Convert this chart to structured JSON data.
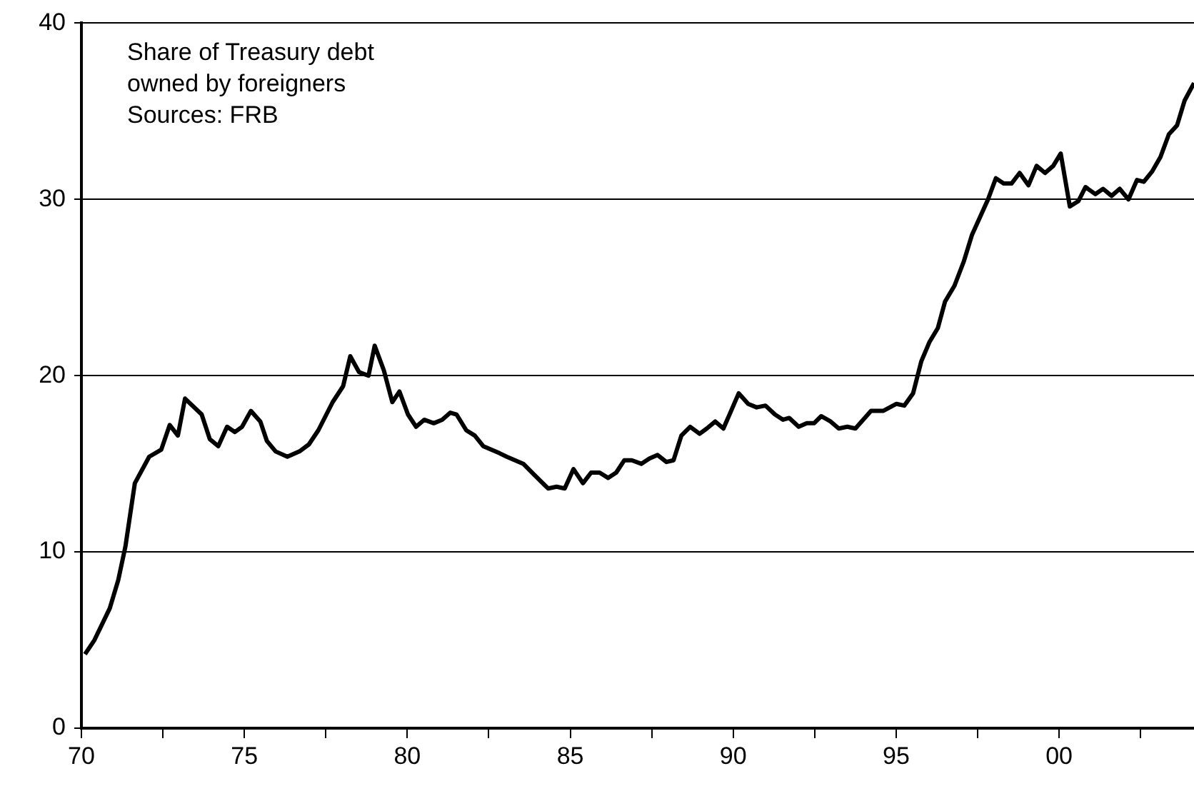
{
  "chart_data": {
    "type": "line",
    "title": "Share of Treasury debt owned by foreigners",
    "annotations": [
      "Sources: FRB"
    ],
    "x": [
      1970.11,
      1970.4,
      1970.87,
      1971.13,
      1971.35,
      1971.64,
      1972.08,
      1972.45,
      1972.71,
      1972.96,
      1973.18,
      1973.69,
      1973.94,
      1974.2,
      1974.47,
      1974.71,
      1974.93,
      1975.2,
      1975.49,
      1975.69,
      1975.96,
      1976.32,
      1976.69,
      1976.98,
      1977.27,
      1977.71,
      1978.03,
      1978.25,
      1978.52,
      1978.81,
      1979.0,
      1979.28,
      1979.54,
      1979.76,
      1980.02,
      1980.27,
      1980.52,
      1980.81,
      1981.07,
      1981.32,
      1981.51,
      1981.81,
      1982.07,
      1982.33,
      1982.83,
      1983.05,
      1983.56,
      1983.88,
      1984.32,
      1984.58,
      1984.83,
      1985.1,
      1985.39,
      1985.64,
      1985.9,
      1986.16,
      1986.41,
      1986.66,
      1986.89,
      1987.18,
      1987.43,
      1987.68,
      1987.95,
      1988.17,
      1988.41,
      1988.68,
      1988.97,
      1989.19,
      1989.45,
      1989.7,
      1990.17,
      1990.46,
      1990.72,
      1990.99,
      1991.28,
      1991.53,
      1991.72,
      1992.01,
      1992.26,
      1992.48,
      1992.7,
      1992.99,
      1993.24,
      1993.5,
      1993.75,
      1994.23,
      1994.6,
      1995.01,
      1995.25,
      1995.52,
      1995.77,
      1996.02,
      1996.28,
      1996.5,
      1996.79,
      1997.08,
      1997.33,
      1997.6,
      1997.82,
      1998.06,
      1998.3,
      1998.54,
      1998.79,
      1999.06,
      1999.31,
      1999.57,
      1999.82,
      2000.05,
      2000.33,
      2000.59,
      2000.81,
      2001.11,
      2001.35,
      2001.61,
      2001.86,
      2002.13,
      2002.39,
      2002.6,
      2002.86,
      2003.11,
      2003.37,
      2003.62,
      2003.85,
      2004.14
    ],
    "series": [
      {
        "color": "#000000",
        "values": [
          4.2,
          5.0,
          6.8,
          8.4,
          10.3,
          13.9,
          15.4,
          15.8,
          17.2,
          16.6,
          18.7,
          17.8,
          16.4,
          16.0,
          17.1,
          16.8,
          17.1,
          18.0,
          17.4,
          16.3,
          15.7,
          15.4,
          15.7,
          16.1,
          16.9,
          18.5,
          19.4,
          21.1,
          20.2,
          20.0,
          21.7,
          20.3,
          18.5,
          19.1,
          17.8,
          17.1,
          17.5,
          17.3,
          17.5,
          17.9,
          17.8,
          16.9,
          16.6,
          16.0,
          15.6,
          15.4,
          15.0,
          14.4,
          13.6,
          13.7,
          13.6,
          14.7,
          13.9,
          14.5,
          14.5,
          14.2,
          14.5,
          15.2,
          15.2,
          15.0,
          15.3,
          15.5,
          15.1,
          15.2,
          16.6,
          17.1,
          16.7,
          17.0,
          17.4,
          17.0,
          19.0,
          18.4,
          18.2,
          18.3,
          17.8,
          17.5,
          17.6,
          17.1,
          17.3,
          17.3,
          17.7,
          17.4,
          17.0,
          17.1,
          17.0,
          18.0,
          18.0,
          18.4,
          18.3,
          19.0,
          20.8,
          21.9,
          22.7,
          24.2,
          25.1,
          26.5,
          28.0,
          29.1,
          30.0,
          31.2,
          30.9,
          30.9,
          31.5,
          30.8,
          31.9,
          31.5,
          31.9,
          32.6,
          29.6,
          29.9,
          30.7,
          30.3,
          30.6,
          30.2,
          30.6,
          30.0,
          31.1,
          31.0,
          31.6,
          32.4,
          33.7,
          34.2,
          35.6,
          36.6
        ]
      }
    ],
    "xlim": [
      1970,
      2004.14
    ],
    "xticks": [
      {
        "value": 1970,
        "label": "70"
      },
      {
        "value": 1972.5,
        "label": null
      },
      {
        "value": 1975,
        "label": "75"
      },
      {
        "value": 1977.5,
        "label": null
      },
      {
        "value": 1980,
        "label": "80"
      },
      {
        "value": 1982.5,
        "label": null
      },
      {
        "value": 1985,
        "label": "85"
      },
      {
        "value": 1987.5,
        "label": null
      },
      {
        "value": 1990,
        "label": "90"
      },
      {
        "value": 1992.5,
        "label": null
      },
      {
        "value": 1995,
        "label": "95"
      },
      {
        "value": 1997.5,
        "label": null
      },
      {
        "value": 2000,
        "label": "00"
      },
      {
        "value": 2002.5,
        "label": null
      }
    ],
    "ylim": [
      0,
      40
    ],
    "yticks": [
      0,
      10,
      20,
      30,
      40
    ],
    "grid": "y",
    "marker": "none",
    "line_style": "solid",
    "legend": false
  }
}
